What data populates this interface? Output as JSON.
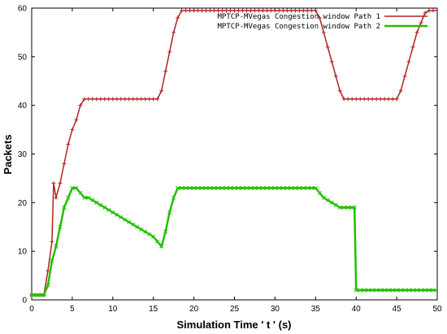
{
  "chart_data": {
    "type": "line",
    "title": "",
    "xlabel": "Simulation Time ' t ' (s)",
    "ylabel": "Packets",
    "xlim": [
      0,
      50
    ],
    "ylim": [
      0,
      60
    ],
    "xticks": [
      0,
      5,
      10,
      15,
      20,
      25,
      30,
      35,
      40,
      45,
      50
    ],
    "yticks": [
      0,
      10,
      20,
      30,
      40,
      50,
      60
    ],
    "grid": false,
    "legend_position": "top-right",
    "series": [
      {
        "name": "MPTCP-MVegas Congestion window Path 1",
        "color": "#b22222",
        "marker": "plus",
        "x": [
          0,
          1.5,
          2,
          2.5,
          2.7,
          3,
          3.5,
          4,
          4.5,
          5,
          5.5,
          6,
          6.5,
          8,
          10,
          12,
          14,
          15.5,
          16,
          16.5,
          17,
          17.5,
          18,
          18.5,
          20,
          25,
          30,
          35,
          35.5,
          36,
          36.5,
          37,
          37.5,
          38,
          38.5,
          39,
          39.5,
          40,
          42,
          44,
          45,
          45.5,
          46,
          46.5,
          47,
          47.5,
          48,
          48.5,
          49,
          50
        ],
        "y": [
          1,
          1,
          6,
          12,
          24,
          21,
          24,
          28,
          32,
          35,
          37,
          40,
          41.3,
          41.3,
          41.3,
          41.3,
          41.3,
          41.3,
          43,
          47,
          51,
          55,
          58,
          59.5,
          59.5,
          59.5,
          59.5,
          59.5,
          58,
          55,
          52,
          49,
          46,
          43,
          41.3,
          41.3,
          41.3,
          41.3,
          41.3,
          41.3,
          41.3,
          43,
          46,
          49,
          52,
          55,
          57,
          59,
          59.5,
          59.5
        ]
      },
      {
        "name": "MPTCP-MVegas Congestion window Path 2",
        "color": "#22c000",
        "marker": "x",
        "x": [
          0,
          1.5,
          2,
          2.5,
          3,
          3.5,
          4,
          4.5,
          5,
          5.5,
          6,
          6.5,
          7,
          8,
          9,
          10,
          11,
          12,
          13,
          14,
          15,
          15.5,
          16,
          16.5,
          17,
          17.5,
          18,
          18.5,
          20,
          25,
          30,
          35,
          35.5,
          36,
          37,
          38,
          39,
          39.5,
          39.8,
          40,
          42,
          45,
          50
        ],
        "y": [
          1,
          1,
          3,
          8,
          11,
          15,
          19,
          21,
          23,
          23,
          22,
          21,
          21,
          20,
          19,
          18,
          17,
          16,
          15,
          14,
          13,
          12,
          11,
          14,
          18,
          21,
          23,
          23,
          23,
          23,
          23,
          23,
          22,
          21,
          20,
          19,
          19,
          19,
          19,
          2,
          2,
          2,
          2
        ]
      }
    ]
  }
}
